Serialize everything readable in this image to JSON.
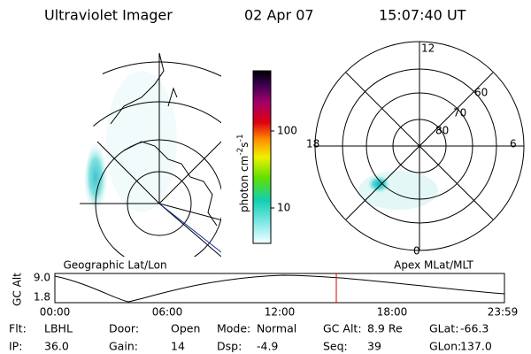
{
  "header": {
    "title": "Ultraviolet Imager",
    "date": "02 Apr 07",
    "time": "15:07:40 UT"
  },
  "colorbar": {
    "unit": "photon cm",
    "exp1": "-2",
    "unit2": "s",
    "exp2": "-1",
    "ticks": [
      "100",
      "10"
    ]
  },
  "polar": {
    "mlt": [
      "12",
      "18",
      "6",
      "0"
    ],
    "mlat": [
      "60",
      "70",
      "80"
    ]
  },
  "map_label": "Geographic Lat/Lon",
  "polar_label": "Apex MLat/MLT",
  "altitude": {
    "axis_label": "GC Alt",
    "yticks": [
      "9.0",
      "1.8"
    ],
    "xticks": [
      "00:00",
      "06:00",
      "12:00",
      "18:00",
      "23:59"
    ]
  },
  "footer": [
    [
      {
        "label": "Flt:",
        "value": "LBHL"
      },
      {
        "label": "Door:",
        "value": "Open"
      },
      {
        "label": "Mode:",
        "value": "Normal"
      },
      {
        "label": "GC Alt:",
        "value": "8.9 Re"
      },
      {
        "label": "GLat:",
        "value": "-66.3"
      }
    ],
    [
      {
        "label": "IP:",
        "value": "36.0"
      },
      {
        "label": "Gain:",
        "value": "14"
      },
      {
        "label": "Dsp:",
        "value": "-4.9"
      },
      {
        "label": "Seq:",
        "value": "39"
      },
      {
        "label": "GLon:",
        "value": "137.0"
      }
    ]
  ]
}
